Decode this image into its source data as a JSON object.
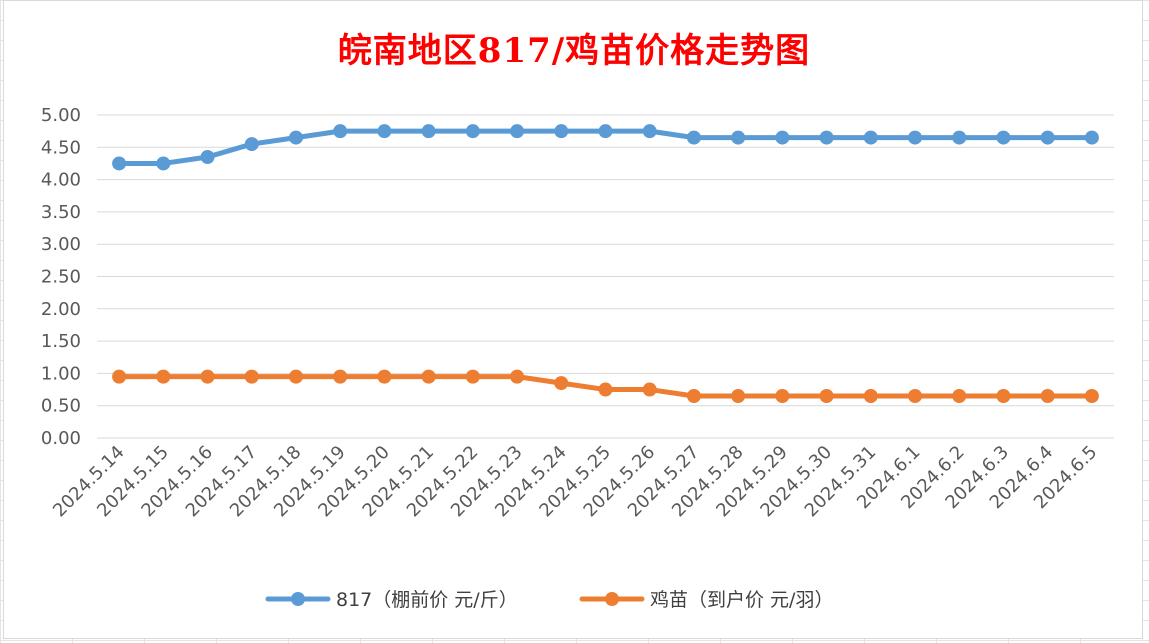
{
  "chart_data": {
    "type": "line",
    "title": "皖南地区817/鸡苗价格走势图",
    "title_color": "#ff0000",
    "xlabel": "",
    "ylabel": "",
    "ylim": [
      0,
      5
    ],
    "y_ticks": [
      "0.00",
      "0.50",
      "1.00",
      "1.50",
      "2.00",
      "2.50",
      "3.00",
      "3.50",
      "4.00",
      "4.50",
      "5.00"
    ],
    "grid": true,
    "legend": "bottom",
    "categories": [
      "2024.5.14",
      "2024.5.15",
      "2024.5.16",
      "2024.5.17",
      "2024.5.18",
      "2024.5.19",
      "2024.5.20",
      "2024.5.21",
      "2024.5.22",
      "2024.5.23",
      "2024.5.24",
      "2024.5.25",
      "2024.5.26",
      "2024.5.27",
      "2024.5.28",
      "2024.5.29",
      "2024.5.30",
      "2024.5.31",
      "2024.6.1",
      "2024.6.2",
      "2024.6.3",
      "2024.6.4",
      "2024.6.5"
    ],
    "series": [
      {
        "name": "817（棚前价 元/斤）",
        "color": "#5b9bd5",
        "values": [
          4.25,
          4.25,
          4.35,
          4.55,
          4.65,
          4.75,
          4.75,
          4.75,
          4.75,
          4.75,
          4.75,
          4.75,
          4.75,
          4.65,
          4.65,
          4.65,
          4.65,
          4.65,
          4.65,
          4.65,
          4.65,
          4.65,
          4.65
        ]
      },
      {
        "name": "鸡苗（到户价 元/羽）",
        "color": "#ed7d31",
        "values": [
          0.95,
          0.95,
          0.95,
          0.95,
          0.95,
          0.95,
          0.95,
          0.95,
          0.95,
          0.95,
          0.85,
          0.75,
          0.75,
          0.65,
          0.65,
          0.65,
          0.65,
          0.65,
          0.65,
          0.65,
          0.65,
          0.65,
          0.65
        ]
      }
    ]
  }
}
